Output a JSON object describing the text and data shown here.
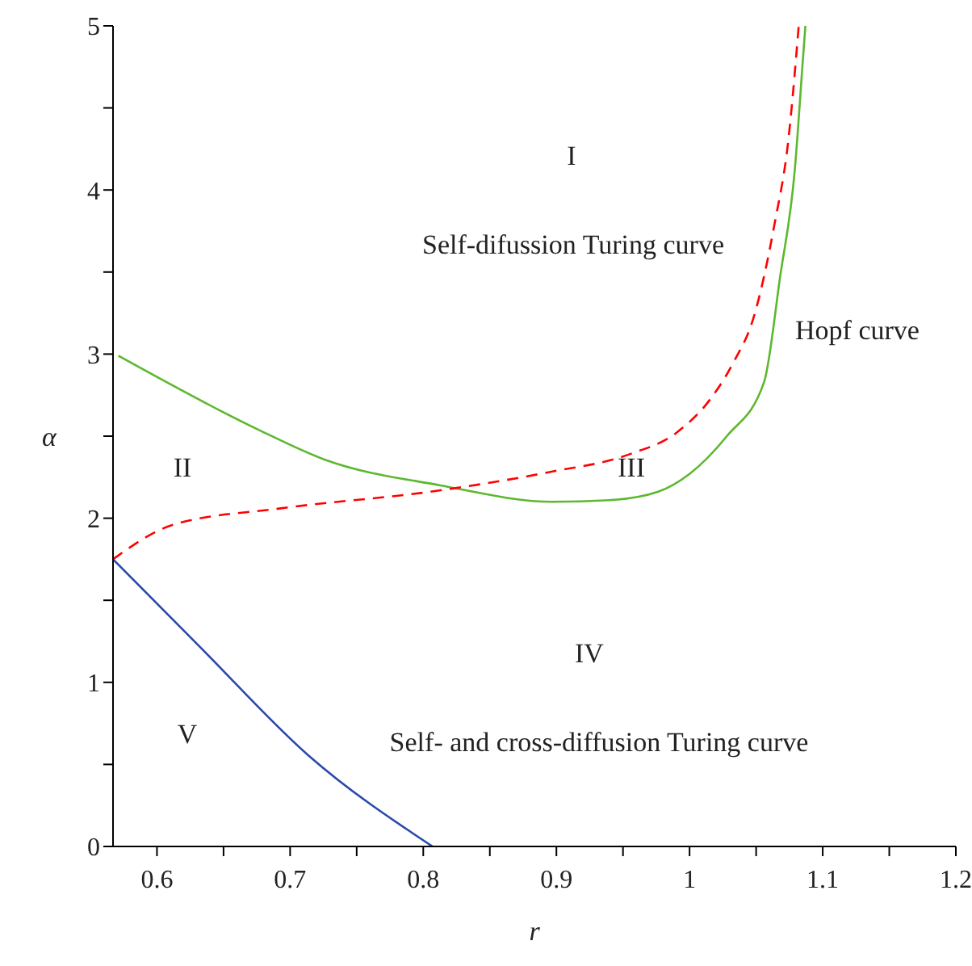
{
  "chart_data": {
    "type": "line",
    "xlabel": "r",
    "ylabel": "α",
    "xlim": [
      0.567,
      1.2
    ],
    "ylim": [
      0,
      5
    ],
    "xticks": [
      0.6,
      {
        "value": 0.65,
        "label": null
      },
      0.7,
      {
        "value": 0.75,
        "label": null
      },
      0.8,
      {
        "value": 0.85,
        "label": null
      },
      0.9,
      {
        "value": 0.95,
        "label": null
      },
      1,
      {
        "value": 1.05,
        "label": null
      },
      1.1,
      {
        "value": 1.15,
        "label": null
      },
      1.2
    ],
    "yticks": [
      0,
      {
        "value": 0.5,
        "label": null
      },
      1,
      {
        "value": 1.5,
        "label": null
      },
      2,
      {
        "value": 2.5,
        "label": null
      },
      3,
      {
        "value": 3.5,
        "label": null
      },
      4,
      {
        "value": 4.5,
        "label": null
      },
      5
    ],
    "grid": false,
    "marker": "none",
    "series": [
      {
        "color": "#5cb82e",
        "line_style": "solid",
        "x": [
          0.571,
          0.676,
          0.725,
          0.813,
          0.897,
          0.94,
          0.976,
          1.0,
          1.028,
          1.056,
          1.068,
          1.079,
          1.085,
          1.087
        ],
        "values": [
          2.99,
          2.54,
          2.36,
          2.2,
          2.1,
          2.11,
          2.16,
          2.27,
          2.5,
          2.83,
          3.47,
          4.12,
          4.78,
          5
        ]
      },
      {
        "color": "#ff0000",
        "line_style": "dashed",
        "x": [
          0.567,
          0.612,
          0.693,
          0.813,
          0.894,
          0.955,
          0.99,
          1.016,
          1.033,
          1.048,
          1.064,
          1.074,
          1.082
        ],
        "values": [
          1.75,
          1.96,
          2.06,
          2.17,
          2.28,
          2.39,
          2.52,
          2.73,
          2.95,
          3.22,
          3.8,
          4.29,
          5
        ]
      },
      {
        "color": "#2a4aa8",
        "line_style": "solid",
        "x": [
          0.567,
          0.633,
          0.713,
          0.807
        ],
        "values": [
          1.75,
          1.21,
          0.56,
          0
        ]
      }
    ],
    "annotations": [
      "I",
      "Self-difussion Turing curve",
      "Hopf curve",
      "II",
      "III",
      "IV",
      "V",
      "Self- and cross-diffusion Turing curve"
    ]
  }
}
